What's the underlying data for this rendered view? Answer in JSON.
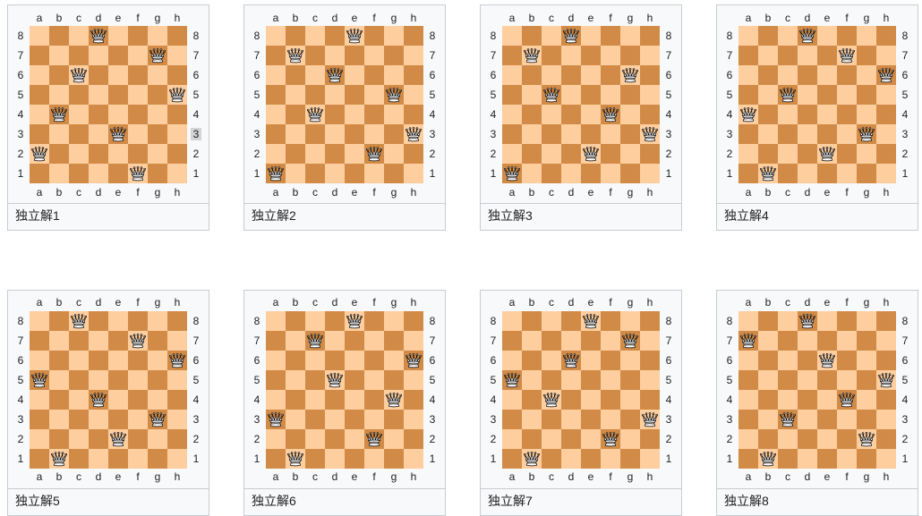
{
  "page": {
    "background": "#ffffff",
    "description": "eight-queens-puzzle-solution-diagrams"
  },
  "board_theme": {
    "light_square": "#ffce9e",
    "dark_square": "#d18b47",
    "tile_background": "#f8f9fa",
    "tile_border": "#c8ccd1",
    "label_color": "#202122",
    "highlight_background": "#d4d4d4"
  },
  "files": [
    "a",
    "b",
    "c",
    "d",
    "e",
    "f",
    "g",
    "h"
  ],
  "ranks": [
    "8",
    "7",
    "6",
    "5",
    "4",
    "3",
    "2",
    "1"
  ],
  "piece": {
    "icon": "white-queen-icon",
    "glyph": "♕"
  },
  "highlight": {
    "board_index": 0,
    "side": "right",
    "rank": "3"
  },
  "boards": [
    {
      "label": "独立解1",
      "queens": [
        "a2",
        "b4",
        "c6",
        "d8",
        "e3",
        "f1",
        "g7",
        "h5"
      ]
    },
    {
      "label": "独立解2",
      "queens": [
        "a1",
        "b7",
        "c4",
        "d6",
        "e8",
        "f2",
        "g5",
        "h3"
      ]
    },
    {
      "label": "独立解3",
      "queens": [
        "a1",
        "b7",
        "c5",
        "d8",
        "e2",
        "f4",
        "g6",
        "h3"
      ]
    },
    {
      "label": "独立解4",
      "queens": [
        "a4",
        "b1",
        "c5",
        "d8",
        "e2",
        "f7",
        "g3",
        "h6"
      ]
    },
    {
      "label": "独立解5",
      "queens": [
        "a5",
        "b1",
        "c8",
        "d4",
        "e2",
        "f7",
        "g3",
        "h6"
      ]
    },
    {
      "label": "独立解6",
      "queens": [
        "a3",
        "b1",
        "c7",
        "d5",
        "e8",
        "f2",
        "g4",
        "h6"
      ]
    },
    {
      "label": "独立解7",
      "queens": [
        "a5",
        "b1",
        "c4",
        "d6",
        "e8",
        "f2",
        "g7",
        "h3"
      ]
    },
    {
      "label": "独立解8",
      "queens": [
        "a7",
        "b1",
        "c3",
        "d8",
        "e6",
        "f4",
        "g2",
        "h5"
      ]
    }
  ]
}
